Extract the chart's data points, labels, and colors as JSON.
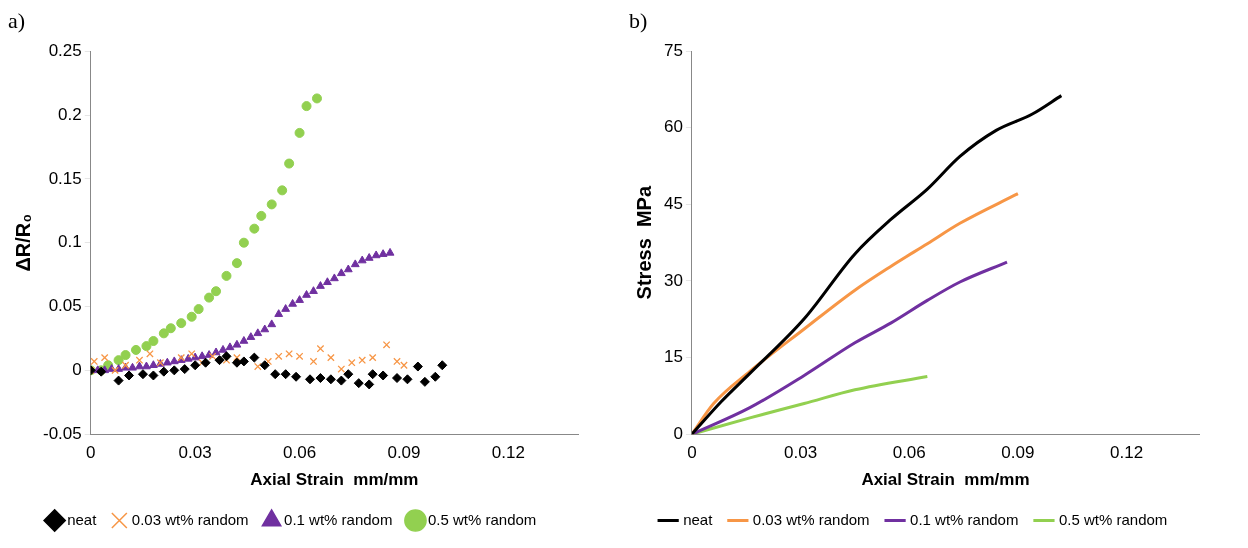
{
  "chart_data": [
    {
      "type": "scatter",
      "title": "a)",
      "xlabel": "Axial Strain  mm/mm",
      "ylabel": "ΔR/R₀",
      "xlim": [
        0,
        0.14
      ],
      "xticks": [
        0,
        0.03,
        0.06,
        0.09,
        0.12
      ],
      "ylim": [
        -0.05,
        0.25
      ],
      "yticks": [
        -0.05,
        0,
        0.05,
        0.1,
        0.15,
        0.2,
        0.25
      ],
      "grid": false,
      "legend": "bottom",
      "series": [
        {
          "name": "neat",
          "color": "#000000",
          "marker": "diamond",
          "x": [
            0,
            0.003,
            0.008,
            0.011,
            0.015,
            0.018,
            0.021,
            0.024,
            0.027,
            0.03,
            0.033,
            0.037,
            0.039,
            0.042,
            0.044,
            0.047,
            0.05,
            0.053,
            0.056,
            0.059,
            0.063,
            0.066,
            0.069,
            0.072,
            0.074,
            0.077,
            0.08,
            0.081,
            0.084,
            0.088,
            0.091,
            0.094,
            0.096,
            0.099,
            0.101
          ],
          "values": [
            0,
            -0.001,
            -0.008,
            -0.004,
            -0.003,
            -0.004,
            -0.001,
            0,
            0.001,
            0.004,
            0.006,
            0.008,
            0.011,
            0.006,
            0.007,
            0.01,
            0.004,
            -0.003,
            -0.003,
            -0.005,
            -0.007,
            -0.006,
            -0.007,
            -0.008,
            -0.003,
            -0.01,
            -0.011,
            -0.003,
            -0.004,
            -0.006,
            -0.007,
            0.003,
            -0.009,
            -0.005,
            0.004
          ]
        },
        {
          "name": "0.03 wt% random",
          "color": "#f79646",
          "marker": "cross",
          "x": [
            0,
            0.001,
            0.004,
            0.007,
            0.01,
            0.014,
            0.017,
            0.02,
            0.023,
            0.026,
            0.029,
            0.032,
            0.035,
            0.039,
            0.042,
            0.045,
            0.048,
            0.051,
            0.054,
            0.057,
            0.06,
            0.064,
            0.066,
            0.069,
            0.072,
            0.075,
            0.078,
            0.081,
            0.085,
            0.088,
            0.09
          ],
          "values": [
            0,
            0.007,
            0.01,
            0,
            0.004,
            0.008,
            0.013,
            0.006,
            null,
            0.01,
            0.013,
            0.006,
            0.011,
            0.008,
            0.01,
            null,
            0.003,
            0.007,
            0.011,
            0.013,
            0.011,
            0.007,
            0.017,
            0.01,
            0.001,
            0.006,
            0.008,
            0.01,
            0.02,
            0.007,
            0.004
          ]
        },
        {
          "name": "0.1 wt% random",
          "color": "#7030a0",
          "marker": "triangle",
          "x": [
            0,
            0.002,
            0.004,
            0.006,
            0.008,
            0.01,
            0.012,
            0.014,
            0.016,
            0.018,
            0.02,
            0.022,
            0.024,
            0.026,
            0.028,
            0.03,
            0.032,
            0.034,
            0.036,
            0.038,
            0.04,
            0.042,
            0.044,
            0.046,
            0.048,
            0.05,
            0.052,
            0.054,
            0.056,
            0.058,
            0.06,
            0.062,
            0.064,
            0.066,
            0.068,
            0.07,
            0.072,
            0.074,
            0.076,
            0.078,
            0.08,
            0.082,
            0.084,
            0.086
          ],
          "values": [
            0,
            0,
            0,
            0.001,
            0.001,
            0.002,
            0.002,
            0.003,
            0.003,
            0.004,
            0.005,
            0.006,
            0.007,
            0.008,
            0.009,
            0.01,
            0.011,
            0.012,
            0.014,
            0.016,
            0.018,
            0.02,
            0.023,
            0.026,
            0.029,
            0.032,
            0.036,
            0.044,
            0.048,
            0.052,
            0.055,
            0.059,
            0.062,
            0.066,
            0.069,
            0.072,
            0.076,
            0.079,
            0.083,
            0.086,
            0.088,
            0.09,
            0.091,
            0.092
          ]
        },
        {
          "name": "0.5 wt% random",
          "color": "#92d050",
          "marker": "circle",
          "x": [
            0,
            0.003,
            0.005,
            0.008,
            0.01,
            0.013,
            0.016,
            0.018,
            0.021,
            0.023,
            0.026,
            0.029,
            0.031,
            0.034,
            0.036,
            0.039,
            0.042,
            0.044,
            0.047,
            0.049,
            0.052,
            0.055,
            0.057,
            0.06,
            0.062,
            0.065
          ],
          "values": [
            0,
            0,
            0.004,
            0.008,
            0.012,
            0.016,
            0.019,
            0.023,
            0.029,
            0.033,
            0.037,
            0.042,
            0.048,
            0.057,
            0.062,
            0.074,
            0.084,
            0.1,
            0.111,
            0.121,
            0.13,
            0.141,
            0.162,
            0.186,
            0.207,
            0.213
          ]
        }
      ]
    },
    {
      "type": "line",
      "title": "b)",
      "xlabel": "Axial Strain  mm/mm",
      "ylabel": "Stress  MPa",
      "xlim": [
        0,
        0.14
      ],
      "xticks": [
        0,
        0.03,
        0.06,
        0.09,
        0.12
      ],
      "ylim": [
        0,
        75
      ],
      "yticks": [
        0,
        15,
        30,
        45,
        60,
        75
      ],
      "grid": false,
      "legend": "bottom",
      "marker": "none",
      "series": [
        {
          "name": "neat",
          "color": "#000000",
          "x": [
            0,
            0.008,
            0.016,
            0.031,
            0.045,
            0.055,
            0.065,
            0.074,
            0.084,
            0.094,
            0.102
          ],
          "values": [
            0,
            6.3,
            11.9,
            22.6,
            35.3,
            42.1,
            48.0,
            54.4,
            59.5,
            62.7,
            66.3
          ]
        },
        {
          "name": "0.03 wt% random",
          "color": "#f79646",
          "x": [
            0,
            0.006,
            0.016,
            0.031,
            0.045,
            0.055,
            0.065,
            0.074,
            0.09
          ],
          "values": [
            0,
            6.0,
            12.3,
            20.6,
            28.2,
            32.9,
            37.3,
            41.3,
            47.1
          ]
        },
        {
          "name": "0.1 wt% random",
          "color": "#7030a0",
          "x": [
            0,
            0.016,
            0.031,
            0.045,
            0.055,
            0.065,
            0.074,
            0.087
          ],
          "values": [
            0,
            5.2,
            11.5,
            17.9,
            21.8,
            26.2,
            29.8,
            33.7
          ]
        },
        {
          "name": "0.5 wt% random",
          "color": "#92d050",
          "x": [
            0,
            0.016,
            0.031,
            0.045,
            0.065
          ],
          "values": [
            0,
            3.2,
            6.0,
            8.7,
            11.3
          ]
        }
      ]
    }
  ]
}
